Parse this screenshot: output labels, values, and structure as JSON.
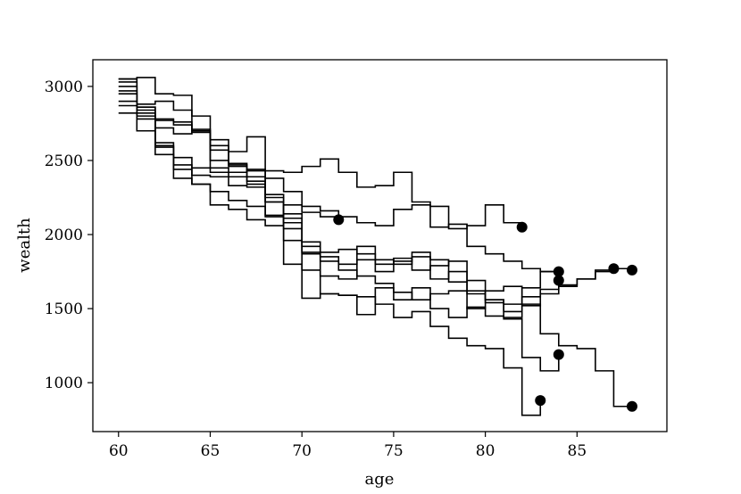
{
  "chart_data": {
    "type": "line",
    "step": true,
    "title": "",
    "xlabel": "age",
    "ylabel": "wealth",
    "xlim": [
      58.6,
      89.9
    ],
    "ylim": [
      670,
      3180
    ],
    "xticks": [
      60,
      65,
      70,
      75,
      80,
      85
    ],
    "yticks": [
      1000,
      1500,
      2000,
      2500,
      3000
    ],
    "grid": false,
    "legend": "none",
    "colors": {
      "line": "#000000",
      "marker": "#000000",
      "axes": "#000000",
      "background": "#ffffff"
    },
    "series": [
      {
        "x": [
          60,
          61,
          62,
          63,
          64,
          65,
          66,
          67,
          68,
          69,
          70,
          71,
          72
        ],
        "y": [
          2820,
          2700,
          2540,
          2380,
          2340,
          2200,
          2170,
          2100,
          2060,
          2200,
          2150,
          2120,
          2100
        ],
        "end": {
          "x": 72,
          "y": 2100
        }
      },
      {
        "x": [
          60,
          61,
          62,
          63,
          64,
          65,
          66,
          67,
          68,
          69,
          70,
          71,
          72,
          73,
          74,
          75,
          76,
          77,
          78,
          79,
          80,
          81,
          82
        ],
        "y": [
          3050,
          3060,
          2950,
          2940,
          2800,
          2640,
          2560,
          2660,
          2430,
          2420,
          2460,
          2510,
          2420,
          2320,
          2330,
          2420,
          2220,
          2190,
          2040,
          2060,
          2200,
          2080,
          2050
        ],
        "end": {
          "x": 82,
          "y": 2050
        }
      },
      {
        "x": [
          60,
          61,
          62,
          63,
          64,
          65,
          66,
          67,
          68,
          69,
          70,
          71,
          72,
          73,
          74,
          75,
          76,
          77,
          78,
          79,
          80,
          81,
          82,
          83,
          84
        ],
        "y": [
          2970,
          2820,
          2780,
          2760,
          2710,
          2600,
          2470,
          2430,
          2380,
          2290,
          2190,
          2160,
          2120,
          2080,
          2060,
          2170,
          2200,
          2050,
          2070,
          1920,
          1870,
          1820,
          1770,
          1750,
          1750
        ],
        "end": {
          "x": 84,
          "y": 1750
        }
      },
      {
        "x": [
          60,
          61,
          62,
          63,
          64,
          65,
          66,
          67,
          68,
          69,
          70,
          71,
          72,
          73,
          74,
          75,
          76,
          77,
          78,
          79,
          80,
          81,
          82,
          83,
          84
        ],
        "y": [
          3000,
          2780,
          2620,
          2520,
          2450,
          2420,
          2390,
          2360,
          2270,
          2140,
          1920,
          1820,
          1800,
          1830,
          1750,
          1840,
          1760,
          1790,
          1820,
          1690,
          1540,
          1440,
          1640,
          1750,
          1690
        ],
        "end": {
          "x": 84,
          "y": 1690
        }
      },
      {
        "x": [
          60,
          61,
          62,
          63,
          64,
          65,
          66,
          67,
          68,
          69,
          70,
          71,
          72,
          73,
          74,
          75,
          76,
          77,
          78,
          79,
          80,
          81,
          82,
          83,
          84,
          85,
          86,
          87
        ],
        "y": [
          3050,
          2880,
          2900,
          2840,
          2700,
          2500,
          2460,
          2340,
          2220,
          2110,
          1880,
          1720,
          1700,
          1920,
          1830,
          1800,
          1880,
          1830,
          1680,
          1620,
          1560,
          1480,
          1520,
          1600,
          1660,
          1700,
          1760,
          1770
        ],
        "end": {
          "x": 87,
          "y": 1770
        }
      },
      {
        "x": [
          60,
          61,
          62,
          63,
          64,
          65,
          66,
          67,
          68,
          69,
          70,
          71,
          72,
          73,
          74,
          75,
          76,
          77,
          78,
          79,
          80,
          81,
          82,
          83,
          84,
          85,
          86,
          87,
          88
        ],
        "y": [
          2900,
          2860,
          2720,
          2680,
          2700,
          2450,
          2420,
          2440,
          2250,
          1960,
          1950,
          1880,
          1900,
          1870,
          1800,
          1820,
          1850,
          1700,
          1750,
          1600,
          1560,
          1530,
          1580,
          1630,
          1650,
          1700,
          1750,
          1770,
          1760
        ],
        "end": {
          "x": 88,
          "y": 1760
        }
      },
      {
        "x": [
          60,
          61,
          62,
          63,
          64,
          65,
          66,
          67,
          68,
          69,
          70,
          71,
          72,
          73,
          74,
          75,
          76,
          77,
          78,
          79,
          80,
          81,
          82,
          83,
          84
        ],
        "y": [
          2950,
          2840,
          2590,
          2440,
          2340,
          2290,
          2230,
          2190,
          2120,
          1800,
          1760,
          1600,
          1590,
          1460,
          1640,
          1560,
          1640,
          1500,
          1440,
          1510,
          1450,
          1430,
          1170,
          1080,
          1190
        ],
        "end": {
          "x": 84,
          "y": 1190
        }
      },
      {
        "x": [
          60,
          61,
          62,
          63,
          64,
          65,
          66,
          67,
          68,
          69,
          70,
          71,
          72,
          73,
          74,
          75,
          76,
          77,
          78,
          79,
          80,
          81,
          82,
          83
        ],
        "y": [
          3030,
          2800,
          2600,
          2470,
          2400,
          2390,
          2330,
          2320,
          2130,
          2040,
          1570,
          1600,
          1590,
          1580,
          1530,
          1440,
          1480,
          1380,
          1300,
          1250,
          1230,
          1100,
          780,
          880
        ],
        "end": {
          "x": 83,
          "y": 880
        }
      },
      {
        "x": [
          60,
          61,
          62,
          63,
          64,
          65,
          66,
          67,
          68,
          69,
          70,
          71,
          72,
          73,
          74,
          75,
          76,
          77,
          78,
          79,
          80,
          81,
          82,
          83,
          84,
          85,
          86,
          87,
          88
        ],
        "y": [
          2870,
          2860,
          2770,
          2740,
          2690,
          2570,
          2480,
          2390,
          2220,
          2080,
          1870,
          1850,
          1760,
          1720,
          1670,
          1610,
          1560,
          1600,
          1620,
          1500,
          1620,
          1650,
          1530,
          1330,
          1250,
          1230,
          1080,
          840,
          840
        ],
        "end": {
          "x": 88,
          "y": 840
        }
      }
    ]
  }
}
